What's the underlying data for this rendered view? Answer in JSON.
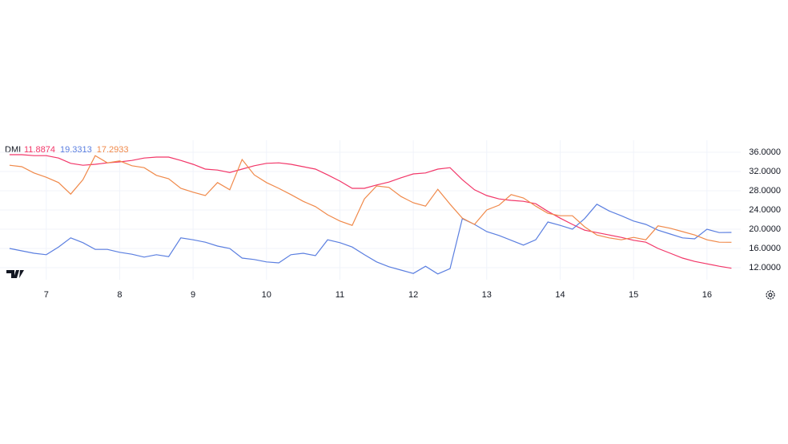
{
  "chart_data": {
    "type": "line",
    "title": "DMI",
    "x": [
      6.5,
      6.667,
      6.833,
      7,
      7.167,
      7.333,
      7.5,
      7.667,
      7.833,
      8,
      8.167,
      8.333,
      8.5,
      8.667,
      8.833,
      9,
      9.167,
      9.333,
      9.5,
      9.667,
      9.833,
      10,
      10.167,
      10.333,
      10.5,
      10.667,
      10.833,
      11,
      11.167,
      11.333,
      11.5,
      11.667,
      11.833,
      12,
      12.167,
      12.333,
      12.5,
      12.667,
      12.833,
      13,
      13.167,
      13.333,
      13.5,
      13.667,
      13.833,
      14,
      14.167,
      14.333,
      14.5,
      14.667,
      14.833,
      15,
      15.167,
      15.333,
      15.5,
      15.667,
      15.833,
      16,
      16.167,
      16.333
    ],
    "series": [
      {
        "color": "#f23668",
        "legend_value": 11.8874,
        "values": [
          35.5,
          35.5,
          35.3,
          35.3,
          34.8,
          33.7,
          33.3,
          33.5,
          33.8,
          34,
          34.3,
          34.8,
          35,
          35,
          34.3,
          33.5,
          32.5,
          32.3,
          31.8,
          32.5,
          33.2,
          33.7,
          33.8,
          33.5,
          33,
          32.5,
          31.3,
          30,
          28.5,
          28.5,
          29.2,
          29.8,
          30.7,
          31.5,
          31.7,
          32.5,
          32.8,
          30.3,
          28.2,
          27,
          26.3,
          26,
          25.8,
          25.3,
          23.7,
          22.3,
          21,
          19.8,
          19.3,
          18.8,
          18.3,
          17.7,
          17.3,
          16,
          15,
          14,
          13.3,
          12.8,
          12.3,
          11.89
        ]
      },
      {
        "color": "#5b7fe0",
        "legend_value": 19.3313,
        "values": [
          16,
          15.5,
          15,
          14.7,
          16.3,
          18.2,
          17.2,
          15.8,
          15.8,
          15.2,
          14.8,
          14.2,
          14.7,
          14.3,
          18.2,
          17.8,
          17.3,
          16.5,
          16,
          14,
          13.7,
          13.2,
          13,
          14.7,
          15,
          14.5,
          17.8,
          17.2,
          16.3,
          14.7,
          13.2,
          12.2,
          11.5,
          10.8,
          12.3,
          10.7,
          11.8,
          22.2,
          21,
          19.5,
          18.7,
          17.7,
          16.7,
          17.8,
          21.5,
          20.8,
          20,
          22.2,
          25.2,
          23.8,
          22.8,
          21.7,
          21,
          19.8,
          19,
          18.2,
          18,
          20,
          19.3,
          19.33
        ]
      },
      {
        "color": "#f0894a",
        "legend_value": 17.2933,
        "values": [
          33.3,
          33,
          31.7,
          30.8,
          29.7,
          27.3,
          30.3,
          35.3,
          33.8,
          34.2,
          33.2,
          32.8,
          31.2,
          30.5,
          28.5,
          27.7,
          27,
          29.7,
          28.2,
          34.5,
          31.3,
          29.7,
          28.5,
          27.2,
          25.8,
          24.7,
          23,
          21.7,
          20.8,
          26.3,
          29,
          28.7,
          26.8,
          25.5,
          24.8,
          28.3,
          25.2,
          22.3,
          21,
          24,
          25,
          27.2,
          26.5,
          24.8,
          23.3,
          22.8,
          22.8,
          20.5,
          18.8,
          18.2,
          17.8,
          18.3,
          17.8,
          20.7,
          20.2,
          19.5,
          18.8,
          17.8,
          17.3,
          17.29
        ]
      }
    ],
    "xlim": [
      6.37,
      16.46
    ],
    "xticks": [
      7,
      8,
      9,
      10,
      11,
      12,
      13,
      14,
      15,
      16
    ],
    "ylim": [
      9.5,
      38.5
    ],
    "yticks": [
      {
        "value": 12,
        "label": "12.0000"
      },
      {
        "value": 16,
        "label": "16.0000"
      },
      {
        "value": 20,
        "label": "20.0000"
      },
      {
        "value": 24,
        "label": "24.0000"
      },
      {
        "value": 28,
        "label": "28.0000"
      },
      {
        "value": 32,
        "label": "32.0000"
      },
      {
        "value": 36,
        "label": "36.0000"
      }
    ],
    "grid": true
  }
}
